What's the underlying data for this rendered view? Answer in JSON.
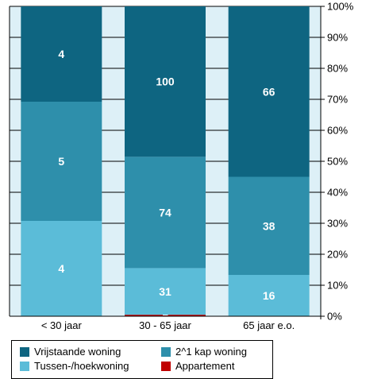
{
  "chart_data": {
    "type": "bar",
    "stacked": "percent",
    "categories": [
      "< 30 jaar",
      "30 - 65 jaar",
      "65 jaar e.o."
    ],
    "series": [
      {
        "name": "Appartement",
        "color": "#c00000",
        "values": [
          0,
          1,
          0
        ]
      },
      {
        "name": "Tussen-/hoekwoning",
        "color": "#5bbcd8",
        "values": [
          4,
          31,
          16
        ]
      },
      {
        "name": "2^1 kap woning",
        "color": "#2e8fab",
        "values": [
          5,
          74,
          38
        ]
      },
      {
        "name": "Vrijstaande woning",
        "color": "#0e6581",
        "values": [
          4,
          100,
          66
        ]
      }
    ],
    "y_ticks": [
      "0%",
      "10%",
      "20%",
      "30%",
      "40%",
      "50%",
      "60%",
      "70%",
      "80%",
      "90%",
      "100%"
    ],
    "ylim": [
      0,
      100
    ],
    "y_axis_side": "right",
    "grid": true,
    "plot_background": "#ddf0f7",
    "legend_position": "bottom-left",
    "legend_order": [
      "Vrijstaande woning",
      "2^1 kap woning",
      "Tussen-/hoekwoning",
      "Appartement"
    ]
  }
}
